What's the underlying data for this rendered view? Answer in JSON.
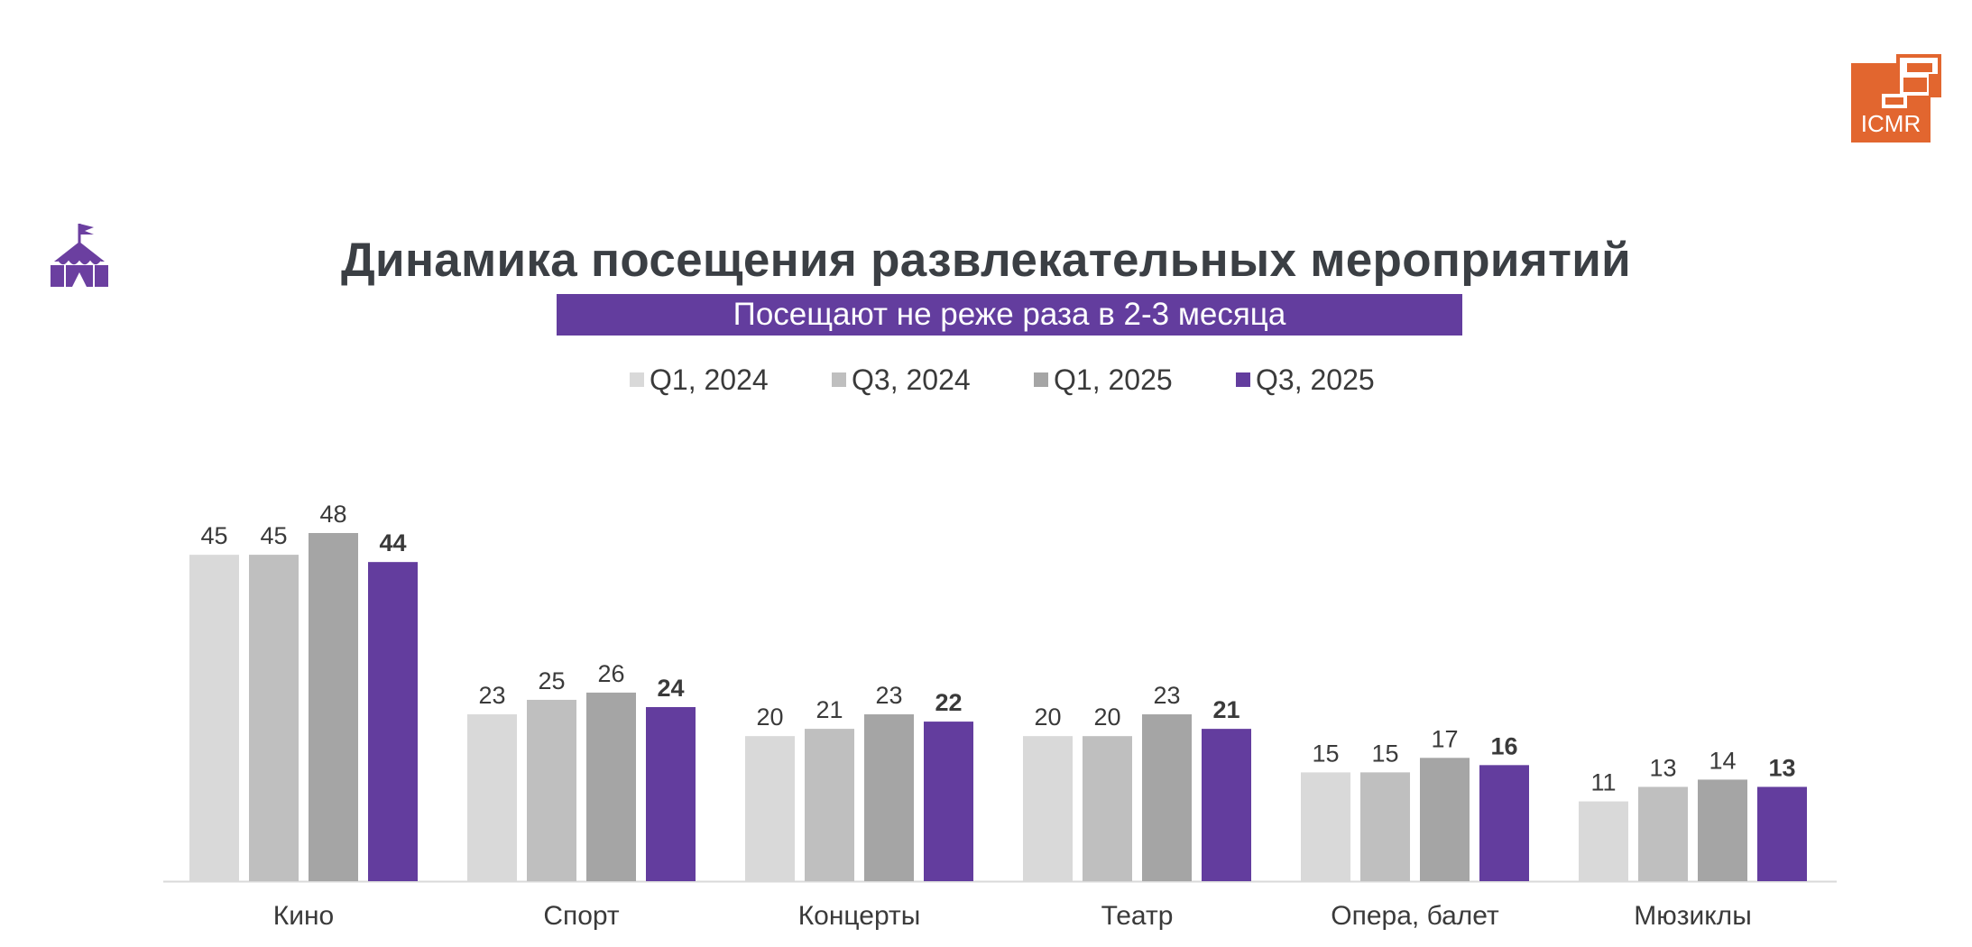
{
  "logo_text": "ICMR",
  "chart_data": {
    "type": "bar",
    "title": "Динамика посещения развлекательных мероприятий",
    "subtitle": "Посещают не реже раза в 2-3 месяца",
    "categories": [
      "Кино",
      "Спорт",
      "Концерты",
      "Театр",
      "Опера, балет",
      "Мюзиклы"
    ],
    "series": [
      {
        "name": "Q1, 2024",
        "color": "#d9d9d9",
        "values": [
          45,
          23,
          20,
          20,
          15,
          11
        ]
      },
      {
        "name": "Q3, 2024",
        "color": "#bfbfbf",
        "values": [
          45,
          25,
          21,
          20,
          15,
          13
        ]
      },
      {
        "name": "Q1, 2025",
        "color": "#a5a5a5",
        "values": [
          48,
          26,
          23,
          23,
          17,
          14
        ]
      },
      {
        "name": "Q3, 2025",
        "color": "#633d9e",
        "values": [
          44,
          24,
          22,
          21,
          16,
          13
        ]
      }
    ],
    "ylim": [
      0,
      48
    ],
    "legend_position": "top",
    "grid": false
  }
}
